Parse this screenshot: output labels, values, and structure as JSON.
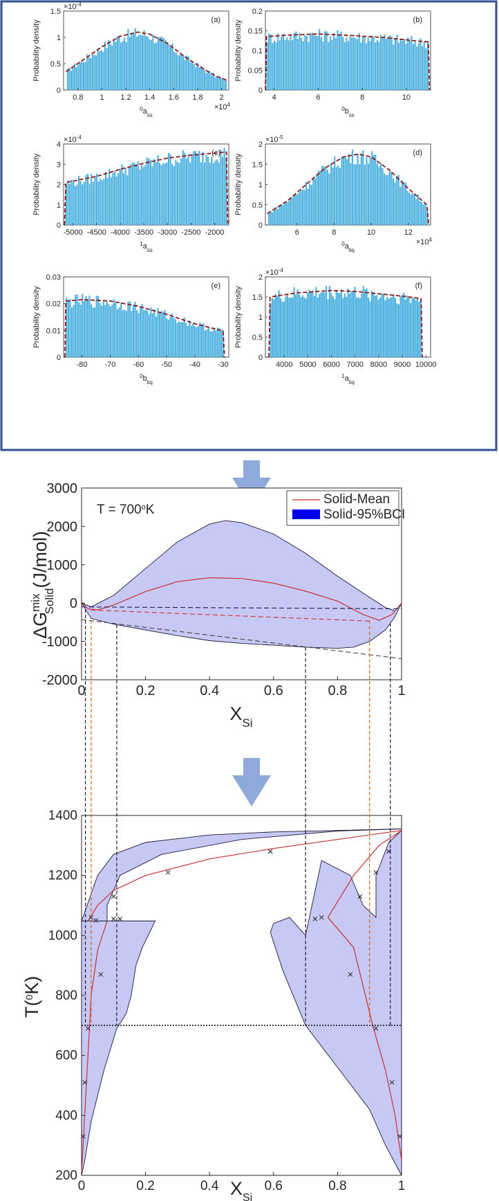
{
  "figure": {
    "frame_color": "#2f4f8f",
    "arrow_color": "#8eaadb",
    "bar_color": "#4db1e0",
    "fit_color": "#8b1a1a",
    "band_fill": "#c8c8f5",
    "band_stroke": "#1a1a3a",
    "mean_color": "#c83232"
  },
  "chart_data": [
    {
      "id": "a",
      "type": "bar",
      "panel_label": "(a)",
      "ylabel": "Probability density",
      "xlabel_sup": "0",
      "xlabel_base": "a",
      "xlabel_sub": "ss",
      "x_exponent": "×10",
      "x_exponent_power": "4",
      "y_exponent": "×10",
      "y_exponent_power": "-4",
      "xlim": [
        0.68,
        2.06
      ],
      "ylim": [
        0,
        1.5
      ],
      "xticks": [
        0.8,
        1.0,
        1.2,
        1.4,
        1.6,
        1.8,
        2.0
      ],
      "xtick_labels": [
        "0.8",
        "1",
        "1.2",
        "1.4",
        "1.6",
        "1.8",
        "2"
      ],
      "yticks": [
        0,
        0.5,
        1.0,
        1.5
      ],
      "ytick_labels": [
        "0",
        "0.5",
        "1",
        "1.5"
      ],
      "density_fit": [
        [
          0.7,
          0.35
        ],
        [
          0.85,
          0.58
        ],
        [
          1.0,
          0.82
        ],
        [
          1.15,
          1.02
        ],
        [
          1.3,
          1.1
        ],
        [
          1.4,
          1.06
        ],
        [
          1.55,
          0.88
        ],
        [
          1.7,
          0.62
        ],
        [
          1.85,
          0.4
        ],
        [
          1.95,
          0.27
        ],
        [
          2.05,
          0.18
        ]
      ]
    },
    {
      "id": "b",
      "type": "bar",
      "panel_label": "(b)",
      "ylabel": "Probability density",
      "xlabel_sup": "0",
      "xlabel_base": "b",
      "xlabel_sub": "ss",
      "xlim": [
        3.6,
        11.1
      ],
      "ylim": [
        0,
        0.2
      ],
      "xticks": [
        4,
        6,
        8,
        10
      ],
      "xtick_labels": [
        "4",
        "6",
        "8",
        "10"
      ],
      "yticks": [
        0,
        0.05,
        0.1,
        0.15,
        0.2
      ],
      "ytick_labels": [
        "0",
        "0.05",
        "0.1",
        "0.15",
        "0.2"
      ],
      "density_fit": [
        [
          3.6,
          0.0
        ],
        [
          3.65,
          0.135
        ],
        [
          4.5,
          0.139
        ],
        [
          6.0,
          0.142
        ],
        [
          7.5,
          0.138
        ],
        [
          9.0,
          0.133
        ],
        [
          10.5,
          0.124
        ],
        [
          11.0,
          0.122
        ],
        [
          11.05,
          0.0
        ]
      ]
    },
    {
      "id": "c",
      "type": "bar",
      "panel_label": "(c)",
      "ylabel": "Probability density",
      "xlabel_sup": "1",
      "xlabel_base": "a",
      "xlabel_sub": "ss",
      "y_exponent": "×10",
      "y_exponent_power": "-4",
      "xlim": [
        -5200,
        -1700
      ],
      "ylim": [
        0,
        4
      ],
      "xticks": [
        -5000,
        -4500,
        -4000,
        -3500,
        -3000,
        -2500,
        -2000
      ],
      "xtick_labels": [
        "-5000",
        "-4500",
        "-4000",
        "-3500",
        "-3000",
        "-2500",
        "-2000"
      ],
      "yticks": [
        0,
        1,
        2,
        3,
        4
      ],
      "ytick_labels": [
        "0",
        "1",
        "2",
        "3",
        "4"
      ],
      "density_fit": [
        [
          -5180,
          0.0
        ],
        [
          -5150,
          2.1
        ],
        [
          -4500,
          2.4
        ],
        [
          -4000,
          2.75
        ],
        [
          -3500,
          3.05
        ],
        [
          -3000,
          3.3
        ],
        [
          -2500,
          3.45
        ],
        [
          -2000,
          3.55
        ],
        [
          -1750,
          3.6
        ],
        [
          -1720,
          0.0
        ]
      ]
    },
    {
      "id": "d",
      "type": "bar",
      "panel_label": "(d)",
      "ylabel": "Probability density",
      "xlabel_sup": "0",
      "xlabel_base": "a",
      "xlabel_sub": "liq",
      "x_exponent": "×10",
      "x_exponent_power": "4",
      "y_exponent": "×10",
      "y_exponent_power": "-5",
      "xlim": [
        4.3,
        13.2
      ],
      "ylim": [
        0,
        2
      ],
      "xticks": [
        6,
        8,
        10,
        12
      ],
      "xtick_labels": [
        "6",
        "8",
        "10",
        "12"
      ],
      "yticks": [
        0,
        0.5,
        1.0,
        1.5,
        2.0
      ],
      "ytick_labels": [
        "0",
        "0.5",
        "1",
        "1.5",
        "2"
      ],
      "density_fit": [
        [
          4.4,
          0.28
        ],
        [
          5.5,
          0.6
        ],
        [
          6.5,
          1.0
        ],
        [
          7.5,
          1.4
        ],
        [
          8.5,
          1.68
        ],
        [
          9.3,
          1.75
        ],
        [
          10.0,
          1.68
        ],
        [
          11.0,
          1.35
        ],
        [
          12.0,
          0.9
        ],
        [
          13.0,
          0.5
        ],
        [
          13.1,
          0.0
        ]
      ]
    },
    {
      "id": "e",
      "type": "bar",
      "panel_label": "(e)",
      "ylabel": "Probability density",
      "xlabel_sup": "0",
      "xlabel_base": "b",
      "xlabel_sub": "liq",
      "xlim": [
        -86.5,
        -28
      ],
      "ylim": [
        0,
        0.03
      ],
      "xticks": [
        -80,
        -70,
        -60,
        -50,
        -40,
        -30
      ],
      "xtick_labels": [
        "-80",
        "-70",
        "-60",
        "-50",
        "-40",
        "-30"
      ],
      "yticks": [
        0,
        0.01,
        0.02,
        0.03
      ],
      "ytick_labels": [
        "0",
        "0.01",
        "0.02",
        "0.03"
      ],
      "density_fit": [
        [
          -86,
          0.0
        ],
        [
          -85.7,
          0.021
        ],
        [
          -80,
          0.0215
        ],
        [
          -70,
          0.021
        ],
        [
          -60,
          0.019
        ],
        [
          -50,
          0.016
        ],
        [
          -40,
          0.0125
        ],
        [
          -30,
          0.0098
        ],
        [
          -29.5,
          0.0
        ]
      ]
    },
    {
      "id": "f",
      "type": "bar",
      "panel_label": "(f)",
      "ylabel": "Probability density",
      "xlabel_sup": "1",
      "xlabel_base": "a",
      "xlabel_sub": "liq",
      "y_exponent": "×10",
      "y_exponent_power": "-4",
      "xlim": [
        3200,
        10200
      ],
      "ylim": [
        0,
        2
      ],
      "xticks": [
        4000,
        5000,
        6000,
        7000,
        8000,
        9000,
        10000
      ],
      "xtick_labels": [
        "4000",
        "5000",
        "6000",
        "7000",
        "8000",
        "9000",
        "10000"
      ],
      "yticks": [
        0,
        0.5,
        1.0,
        1.5,
        2.0
      ],
      "ytick_labels": [
        "0",
        "0.5",
        "1",
        "1.5",
        "2"
      ],
      "density_fit": [
        [
          3350,
          0.0
        ],
        [
          3400,
          1.5
        ],
        [
          4500,
          1.6
        ],
        [
          6000,
          1.66
        ],
        [
          7000,
          1.64
        ],
        [
          8000,
          1.58
        ],
        [
          9000,
          1.52
        ],
        [
          9800,
          1.46
        ],
        [
          9850,
          0.0
        ]
      ]
    },
    {
      "id": "gibbs",
      "type": "area",
      "title": "T = 700",
      "title_sup": "o",
      "title_suffix": "K",
      "ylabel": "ΔG",
      "ylabel_sup": "mix",
      "ylabel_sub": "Solid",
      "ylabel_unit": "(J/mol)",
      "xlabel": "X",
      "xlabel_sub": "Si",
      "xlim": [
        0,
        1
      ],
      "ylim": [
        -2000,
        3000
      ],
      "xticks": [
        0,
        0.2,
        0.4,
        0.6,
        0.8,
        1.0
      ],
      "xtick_labels": [
        "0",
        "0.2",
        "0.4",
        "0.6",
        "0.8",
        "1"
      ],
      "yticks": [
        -2000,
        -1000,
        0,
        1000,
        2000,
        3000
      ],
      "ytick_labels": [
        "-2000",
        "-1000",
        "0",
        "1000",
        "2000",
        "3000"
      ],
      "legend": [
        "Solid-Mean",
        "Solid-95%BCI"
      ],
      "legend_location": "top-right",
      "band_upper": [
        [
          0,
          0
        ],
        [
          0.03,
          -100
        ],
        [
          0.1,
          200
        ],
        [
          0.2,
          900
        ],
        [
          0.3,
          1600
        ],
        [
          0.4,
          2060
        ],
        [
          0.45,
          2150
        ],
        [
          0.5,
          2100
        ],
        [
          0.6,
          1800
        ],
        [
          0.7,
          1300
        ],
        [
          0.8,
          700
        ],
        [
          0.9,
          150
        ],
        [
          0.95,
          -120
        ],
        [
          0.98,
          -200
        ],
        [
          1.0,
          0
        ]
      ],
      "band_lower": [
        [
          0,
          0
        ],
        [
          0.03,
          -400
        ],
        [
          0.1,
          -550
        ],
        [
          0.2,
          -700
        ],
        [
          0.3,
          -850
        ],
        [
          0.4,
          -980
        ],
        [
          0.5,
          -1050
        ],
        [
          0.6,
          -1100
        ],
        [
          0.7,
          -1150
        ],
        [
          0.8,
          -1180
        ],
        [
          0.85,
          -1150
        ],
        [
          0.9,
          -1000
        ],
        [
          0.95,
          -700
        ],
        [
          0.98,
          -350
        ],
        [
          1.0,
          0
        ]
      ],
      "mean_curve": [
        [
          0,
          0
        ],
        [
          0.02,
          -150
        ],
        [
          0.05,
          -180
        ],
        [
          0.1,
          -50
        ],
        [
          0.2,
          300
        ],
        [
          0.3,
          560
        ],
        [
          0.4,
          660
        ],
        [
          0.5,
          640
        ],
        [
          0.6,
          520
        ],
        [
          0.7,
          310
        ],
        [
          0.8,
          50
        ],
        [
          0.88,
          -300
        ],
        [
          0.93,
          -450
        ],
        [
          0.97,
          -300
        ],
        [
          1.0,
          0
        ]
      ],
      "common_tangent_mean": [
        [
          0.03,
          -180
        ],
        [
          0.9,
          -470
        ]
      ],
      "common_tangent_upper": [
        [
          0.0,
          -100
        ],
        [
          1.0,
          -150
        ]
      ],
      "common_tangent_lower": [
        [
          0.0,
          -430
        ],
        [
          1.0,
          -1450
        ]
      ],
      "drop_lines_black": [
        0.012,
        0.11,
        0.7,
        0.965
      ],
      "drop_lines_orange": [
        0.03,
        0.9
      ]
    },
    {
      "id": "phase",
      "type": "area",
      "ylabel": "T(",
      "ylabel_sup": "0",
      "ylabel_suffix": "K)",
      "xlabel": "X",
      "xlabel_sub": "Si",
      "xlim": [
        0,
        1
      ],
      "ylim": [
        200,
        1400
      ],
      "xticks": [
        0,
        0.2,
        0.4,
        0.6,
        0.8,
        1.0
      ],
      "xtick_labels": [
        "0",
        "0.2",
        "0.4",
        "0.6",
        "0.8",
        "1"
      ],
      "yticks": [
        200,
        400,
        600,
        800,
        1000,
        1200,
        1400
      ],
      "ytick_labels": [
        "200",
        "400",
        "600",
        "800",
        "1000",
        "1200",
        "1400"
      ],
      "isotherm_T": 700,
      "band_left": [
        [
          0,
          200
        ],
        [
          0,
          1048
        ],
        [
          0.05,
          1200
        ],
        [
          0.1,
          1270
        ],
        [
          0.2,
          1310
        ],
        [
          0.4,
          1335
        ],
        [
          0.6,
          1345
        ],
        [
          0.8,
          1350
        ],
        [
          1.0,
          1355
        ],
        [
          0.8,
          1348
        ],
        [
          0.5,
          1320
        ],
        [
          0.25,
          1270
        ],
        [
          0.12,
          1200
        ],
        [
          0.08,
          1100
        ],
        [
          0.08,
          1048
        ],
        [
          0.23,
          1048
        ],
        [
          0.19,
          960
        ],
        [
          0.17,
          900
        ],
        [
          0.155,
          800
        ],
        [
          0.14,
          740
        ],
        [
          0.11,
          690
        ],
        [
          0.07,
          550
        ],
        [
          0.03,
          380
        ],
        [
          0.01,
          250
        ],
        [
          0,
          200
        ]
      ],
      "band_right": [
        [
          0.59,
          1010
        ],
        [
          0.63,
          880
        ],
        [
          0.7,
          700
        ],
        [
          0.8,
          560
        ],
        [
          0.9,
          420
        ],
        [
          0.95,
          300
        ],
        [
          1.0,
          200
        ],
        [
          1.0,
          1350
        ],
        [
          0.96,
          1310
        ],
        [
          0.92,
          1200
        ],
        [
          0.92,
          1060
        ],
        [
          0.88,
          1100
        ],
        [
          0.84,
          1200
        ],
        [
          0.75,
          1250
        ],
        [
          0.7,
          1000
        ],
        [
          0.65,
          1060
        ],
        [
          0.6,
          1040
        ],
        [
          0.59,
          1010
        ]
      ],
      "eutectic_T": 1048,
      "mean_liquidus_left": [
        [
          0.02,
          1048
        ],
        [
          0.05,
          1100
        ],
        [
          0.1,
          1150
        ],
        [
          0.2,
          1200
        ],
        [
          0.4,
          1255
        ],
        [
          0.6,
          1290
        ],
        [
          0.8,
          1320
        ],
        [
          1.0,
          1350
        ]
      ],
      "mean_solvus_left": [
        [
          0,
          210
        ],
        [
          0.01,
          400
        ],
        [
          0.02,
          600
        ],
        [
          0.03,
          800
        ],
        [
          0.05,
          950
        ],
        [
          0.08,
          1048
        ]
      ],
      "mean_solidus_right": [
        [
          0.77,
          1060
        ],
        [
          0.85,
          960
        ],
        [
          0.91,
          700
        ],
        [
          0.95,
          550
        ],
        [
          0.98,
          400
        ],
        [
          1.0,
          250
        ]
      ],
      "mean_liquidus_right": [
        [
          0.77,
          1060
        ],
        [
          0.85,
          1200
        ],
        [
          0.93,
          1300
        ],
        [
          1.0,
          1350
        ]
      ],
      "markers": [
        [
          0.005,
          330
        ],
        [
          0.01,
          510
        ],
        [
          0.02,
          690
        ],
        [
          0.03,
          1060
        ],
        [
          0.045,
          1050
        ],
        [
          0.06,
          870
        ],
        [
          0.1,
          1130
        ],
        [
          0.1,
          1055
        ],
        [
          0.12,
          1055
        ],
        [
          0.27,
          1210
        ],
        [
          0.59,
          1280
        ],
        [
          0.73,
          1055
        ],
        [
          0.75,
          1060
        ],
        [
          0.84,
          870
        ],
        [
          0.87,
          1130
        ],
        [
          0.92,
          1210
        ],
        [
          0.92,
          690
        ],
        [
          0.96,
          1280
        ],
        [
          0.97,
          510
        ],
        [
          0.995,
          330
        ]
      ]
    }
  ]
}
